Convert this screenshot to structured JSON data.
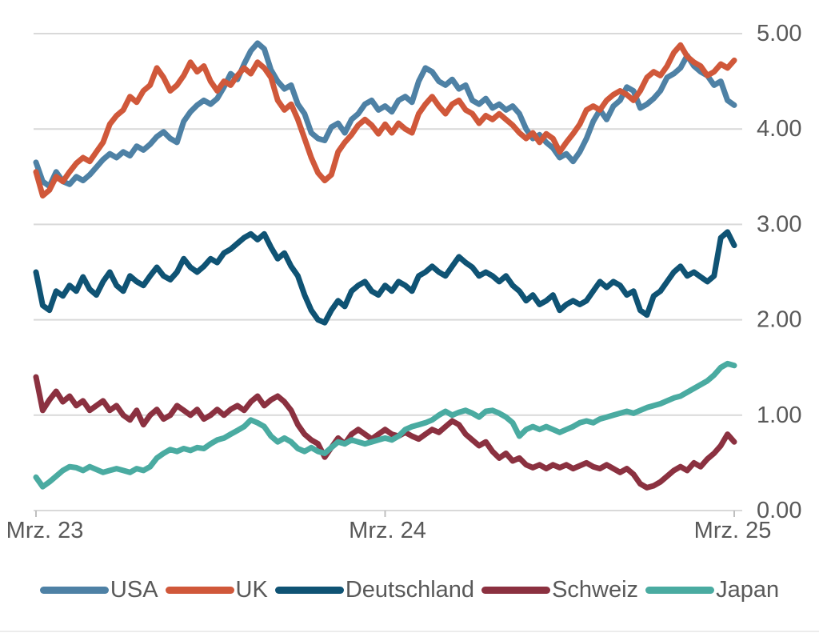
{
  "chart": {
    "background": "#ffffff",
    "text_color": "#595959",
    "gridline_color": "#d9d9d9",
    "axis_line_color": "#d9d9d9",
    "tick_color": "#bfbfbf",
    "divider_color": "#ececec"
  },
  "chart_data": {
    "type": "line",
    "title": "",
    "xlabel": "",
    "ylabel": "",
    "x_unit": "weekly, Mrz. 2023 - Mrz. 2025",
    "x_tick_labels": [
      "Mrz. 23",
      "Mrz. 24",
      "Mrz. 25"
    ],
    "x_tick_indices": [
      0,
      52,
      104
    ],
    "y_tick_labels": [
      "0.00",
      "1.00",
      "2.00",
      "3.00",
      "4.00",
      "5.00"
    ],
    "y_tick_values": [
      0,
      1,
      2,
      3,
      4,
      5
    ],
    "ylim": [
      0,
      5
    ],
    "grid": "horizontal",
    "legend_position": "bottom",
    "series": [
      {
        "name": "USA",
        "color": "#4e81a5",
        "values": [
          3.65,
          3.45,
          3.4,
          3.55,
          3.45,
          3.42,
          3.5,
          3.46,
          3.52,
          3.6,
          3.68,
          3.74,
          3.7,
          3.76,
          3.72,
          3.82,
          3.78,
          3.84,
          3.92,
          3.97,
          3.9,
          3.86,
          4.08,
          4.18,
          4.25,
          4.3,
          4.26,
          4.32,
          4.44,
          4.58,
          4.52,
          4.68,
          4.82,
          4.9,
          4.84,
          4.62,
          4.5,
          4.42,
          4.46,
          4.26,
          4.16,
          3.96,
          3.9,
          3.88,
          4.02,
          4.06,
          3.96,
          4.1,
          4.16,
          4.26,
          4.3,
          4.2,
          4.24,
          4.18,
          4.3,
          4.34,
          4.28,
          4.5,
          4.64,
          4.6,
          4.5,
          4.46,
          4.52,
          4.42,
          4.46,
          4.3,
          4.26,
          4.32,
          4.22,
          4.26,
          4.2,
          4.24,
          4.16,
          4.0,
          3.9,
          3.94,
          3.86,
          3.8,
          3.7,
          3.74,
          3.66,
          3.76,
          3.9,
          4.08,
          4.2,
          4.1,
          4.24,
          4.3,
          4.44,
          4.4,
          4.22,
          4.26,
          4.32,
          4.4,
          4.54,
          4.58,
          4.64,
          4.77,
          4.66,
          4.6,
          4.56,
          4.46,
          4.5,
          4.3,
          4.25
        ]
      },
      {
        "name": "UK",
        "color": "#d0583a",
        "values": [
          3.55,
          3.3,
          3.36,
          3.5,
          3.45,
          3.55,
          3.64,
          3.7,
          3.66,
          3.76,
          3.86,
          4.05,
          4.14,
          4.2,
          4.34,
          4.28,
          4.4,
          4.46,
          4.64,
          4.54,
          4.4,
          4.46,
          4.56,
          4.7,
          4.6,
          4.66,
          4.5,
          4.4,
          4.5,
          4.46,
          4.56,
          4.64,
          4.58,
          4.7,
          4.64,
          4.54,
          4.3,
          4.2,
          4.26,
          4.1,
          3.9,
          3.7,
          3.54,
          3.46,
          3.52,
          3.76,
          3.86,
          3.94,
          4.04,
          4.1,
          4.04,
          3.95,
          4.05,
          3.96,
          4.06,
          4.0,
          3.96,
          4.16,
          4.26,
          4.34,
          4.24,
          4.16,
          4.26,
          4.3,
          4.2,
          4.16,
          4.06,
          4.14,
          4.1,
          4.16,
          4.1,
          4.04,
          3.96,
          3.9,
          3.96,
          3.86,
          3.95,
          3.9,
          3.76,
          3.86,
          3.95,
          4.05,
          4.2,
          4.24,
          4.2,
          4.3,
          4.36,
          4.4,
          4.36,
          4.3,
          4.4,
          4.54,
          4.6,
          4.56,
          4.66,
          4.8,
          4.88,
          4.76,
          4.7,
          4.66,
          4.56,
          4.6,
          4.68,
          4.64,
          4.72
        ]
      },
      {
        "name": "Deutschland",
        "color": "#0f5374",
        "values": [
          2.5,
          2.15,
          2.1,
          2.3,
          2.25,
          2.36,
          2.3,
          2.45,
          2.32,
          2.26,
          2.4,
          2.5,
          2.36,
          2.3,
          2.46,
          2.4,
          2.36,
          2.46,
          2.55,
          2.46,
          2.42,
          2.5,
          2.64,
          2.55,
          2.5,
          2.56,
          2.64,
          2.6,
          2.7,
          2.74,
          2.8,
          2.86,
          2.9,
          2.84,
          2.9,
          2.76,
          2.64,
          2.7,
          2.56,
          2.46,
          2.26,
          2.1,
          2.0,
          1.97,
          2.1,
          2.2,
          2.14,
          2.3,
          2.36,
          2.4,
          2.3,
          2.26,
          2.36,
          2.3,
          2.4,
          2.36,
          2.3,
          2.46,
          2.5,
          2.56,
          2.5,
          2.46,
          2.56,
          2.66,
          2.6,
          2.55,
          2.46,
          2.5,
          2.46,
          2.4,
          2.46,
          2.36,
          2.3,
          2.2,
          2.26,
          2.16,
          2.2,
          2.26,
          2.1,
          2.16,
          2.2,
          2.16,
          2.2,
          2.3,
          2.4,
          2.34,
          2.4,
          2.36,
          2.26,
          2.3,
          2.1,
          2.05,
          2.25,
          2.3,
          2.4,
          2.5,
          2.56,
          2.46,
          2.5,
          2.45,
          2.4,
          2.46,
          2.86,
          2.92,
          2.78
        ]
      },
      {
        "name": "Schweiz",
        "color": "#8b3140",
        "values": [
          1.4,
          1.05,
          1.16,
          1.25,
          1.14,
          1.2,
          1.1,
          1.15,
          1.05,
          1.1,
          1.15,
          1.05,
          1.1,
          1.0,
          0.95,
          1.05,
          0.9,
          1.0,
          1.06,
          0.96,
          1.0,
          1.1,
          1.05,
          1.0,
          1.06,
          0.96,
          1.0,
          1.06,
          1.0,
          1.06,
          1.1,
          1.05,
          1.14,
          1.2,
          1.1,
          1.16,
          1.2,
          1.14,
          1.05,
          0.9,
          0.8,
          0.74,
          0.7,
          0.56,
          0.66,
          0.76,
          0.7,
          0.8,
          0.85,
          0.8,
          0.75,
          0.8,
          0.85,
          0.8,
          0.78,
          0.82,
          0.78,
          0.75,
          0.8,
          0.85,
          0.82,
          0.88,
          0.94,
          0.9,
          0.8,
          0.74,
          0.68,
          0.72,
          0.62,
          0.55,
          0.6,
          0.52,
          0.55,
          0.48,
          0.45,
          0.48,
          0.44,
          0.48,
          0.45,
          0.48,
          0.44,
          0.47,
          0.5,
          0.46,
          0.44,
          0.48,
          0.44,
          0.4,
          0.44,
          0.38,
          0.28,
          0.24,
          0.26,
          0.3,
          0.36,
          0.42,
          0.46,
          0.42,
          0.5,
          0.46,
          0.54,
          0.6,
          0.68,
          0.8,
          0.72
        ]
      },
      {
        "name": "Japan",
        "color": "#4aaba1",
        "values": [
          0.35,
          0.25,
          0.3,
          0.36,
          0.42,
          0.46,
          0.45,
          0.42,
          0.46,
          0.43,
          0.4,
          0.42,
          0.44,
          0.42,
          0.4,
          0.44,
          0.42,
          0.46,
          0.55,
          0.6,
          0.64,
          0.62,
          0.65,
          0.63,
          0.66,
          0.65,
          0.7,
          0.74,
          0.76,
          0.8,
          0.84,
          0.88,
          0.95,
          0.92,
          0.88,
          0.78,
          0.72,
          0.76,
          0.72,
          0.65,
          0.62,
          0.66,
          0.62,
          0.6,
          0.66,
          0.72,
          0.7,
          0.74,
          0.72,
          0.7,
          0.72,
          0.74,
          0.76,
          0.74,
          0.78,
          0.85,
          0.88,
          0.9,
          0.92,
          0.95,
          1.0,
          1.04,
          1.0,
          1.03,
          1.05,
          1.02,
          0.98,
          1.04,
          1.05,
          1.02,
          0.98,
          0.92,
          0.78,
          0.85,
          0.88,
          0.85,
          0.88,
          0.85,
          0.82,
          0.85,
          0.88,
          0.92,
          0.94,
          0.92,
          0.96,
          0.98,
          1.0,
          1.02,
          1.04,
          1.02,
          1.05,
          1.08,
          1.1,
          1.12,
          1.15,
          1.18,
          1.2,
          1.24,
          1.28,
          1.32,
          1.36,
          1.42,
          1.5,
          1.54,
          1.52
        ]
      }
    ]
  }
}
